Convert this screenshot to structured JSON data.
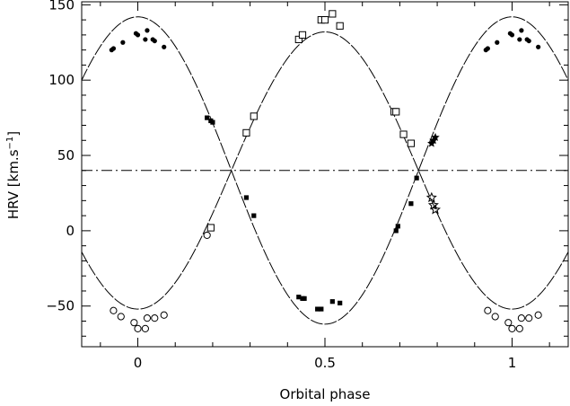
{
  "chart_data": {
    "type": "scatter",
    "title": "",
    "xlabel": "Orbital phase",
    "ylabel": "HRV [km.s⁻¹]",
    "ylabel_parts": {
      "main": "HRV [km.s",
      "sup": "−1",
      "end": "]"
    },
    "xlim": [
      -0.15,
      1.15
    ],
    "ylim": [
      -77,
      152
    ],
    "xticks": [
      0,
      0.5,
      1
    ],
    "xtick_labels": [
      "0",
      "0.5",
      "1"
    ],
    "yticks": [
      -50,
      0,
      50,
      100,
      150
    ],
    "ytick_labels": [
      "−50",
      "0",
      "50",
      "100",
      "150"
    ],
    "grid": false,
    "legend": "none",
    "systemic_velocity": 40,
    "fits": [
      {
        "name": "",
        "gamma": 40,
        "K": 92,
        "phase0": 0.25,
        "sign": 1
      },
      {
        "name": "",
        "gamma": 40,
        "K": 102,
        "phase0": 0.25,
        "sign": -1
      }
    ],
    "series": [
      {
        "name": "",
        "marker": "filled-circle",
        "points": [
          [
            -0.07,
            120
          ],
          [
            -0.065,
            121
          ],
          [
            -0.04,
            125
          ],
          [
            -0.005,
            131
          ],
          [
            0.0,
            130
          ],
          [
            0.025,
            133
          ],
          [
            0.02,
            127
          ],
          [
            0.04,
            127
          ],
          [
            0.045,
            126
          ],
          [
            0.07,
            122
          ],
          [
            0.93,
            120
          ],
          [
            0.935,
            121
          ],
          [
            0.96,
            125
          ],
          [
            0.995,
            131
          ],
          [
            1.0,
            130
          ],
          [
            1.025,
            133
          ],
          [
            1.02,
            127
          ],
          [
            1.04,
            127
          ],
          [
            1.045,
            126
          ],
          [
            1.07,
            122
          ]
        ]
      },
      {
        "name": "",
        "marker": "filled-square",
        "points": [
          [
            0.185,
            75
          ],
          [
            0.195,
            73
          ],
          [
            0.2,
            72
          ],
          [
            0.29,
            22
          ],
          [
            0.31,
            10
          ],
          [
            0.43,
            -44
          ],
          [
            0.44,
            -45
          ],
          [
            0.445,
            -45
          ],
          [
            0.48,
            -52
          ],
          [
            0.49,
            -52
          ],
          [
            0.52,
            -47
          ],
          [
            0.54,
            -48
          ],
          [
            0.69,
            0
          ],
          [
            0.695,
            3
          ],
          [
            0.73,
            18
          ],
          [
            0.745,
            35
          ]
        ]
      },
      {
        "name": "",
        "marker": "open-circle",
        "points": [
          [
            -0.065,
            -53
          ],
          [
            -0.045,
            -57
          ],
          [
            -0.01,
            -61
          ],
          [
            0.0,
            -65
          ],
          [
            0.02,
            -65
          ],
          [
            0.025,
            -58
          ],
          [
            0.045,
            -58
          ],
          [
            0.07,
            -56
          ],
          [
            0.185,
            -3
          ],
          [
            0.935,
            -53
          ],
          [
            0.955,
            -57
          ],
          [
            0.99,
            -61
          ],
          [
            1.0,
            -65
          ],
          [
            1.02,
            -65
          ],
          [
            1.025,
            -58
          ],
          [
            1.045,
            -58
          ],
          [
            1.07,
            -56
          ]
        ]
      },
      {
        "name": "",
        "marker": "open-square",
        "points": [
          [
            0.195,
            2
          ],
          [
            0.29,
            65
          ],
          [
            0.31,
            76
          ],
          [
            0.43,
            127
          ],
          [
            0.44,
            130
          ],
          [
            0.49,
            140
          ],
          [
            0.5,
            140
          ],
          [
            0.52,
            144
          ],
          [
            0.54,
            136
          ],
          [
            0.685,
            79
          ],
          [
            0.69,
            79
          ],
          [
            0.71,
            64
          ],
          [
            0.73,
            58
          ]
        ]
      },
      {
        "name": "",
        "marker": "filled-star",
        "points": [
          [
            0.785,
            58
          ],
          [
            0.79,
            60
          ],
          [
            0.795,
            62
          ]
        ]
      },
      {
        "name": "",
        "marker": "open-star",
        "points": [
          [
            0.785,
            22
          ],
          [
            0.79,
            17
          ],
          [
            0.795,
            14
          ]
        ]
      }
    ]
  }
}
